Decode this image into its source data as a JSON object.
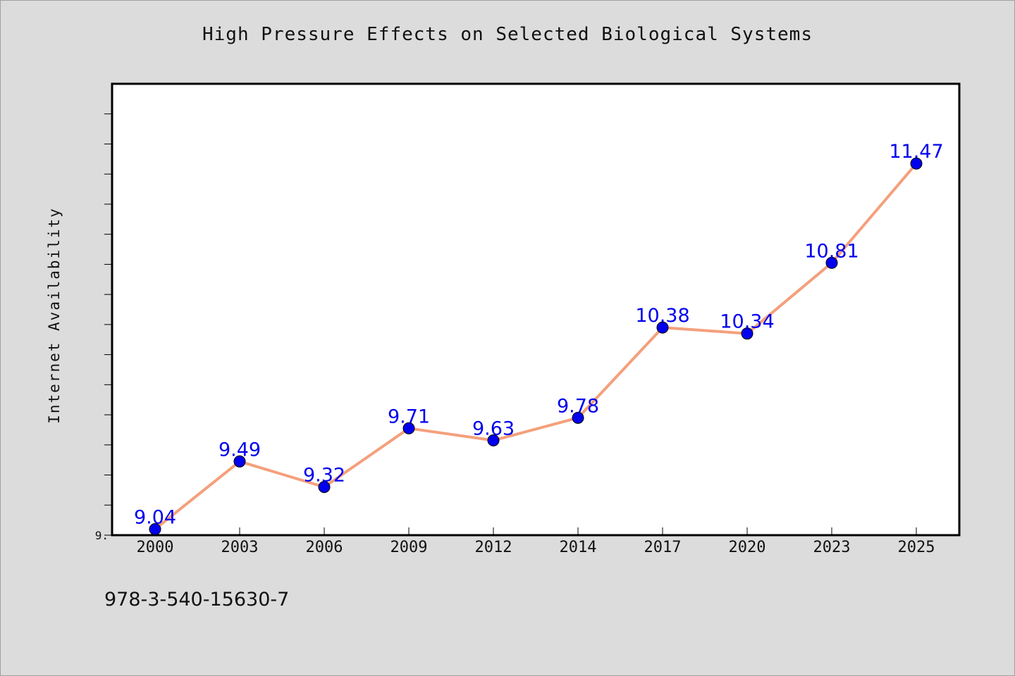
{
  "chart_data": {
    "type": "line",
    "title": "High Pressure Effects on Selected Biological Systems",
    "xlabel": "",
    "ylabel": "Internet Availability",
    "categories": [
      "2000",
      "2003",
      "2006",
      "2009",
      "2012",
      "2014",
      "2017",
      "2020",
      "2023",
      "2025"
    ],
    "series": [
      {
        "values": [
          9.04,
          9.49,
          9.32,
          9.71,
          9.63,
          9.78,
          10.38,
          10.34,
          10.81,
          11.47
        ],
        "color": "#f4a07c",
        "marker_color": "#0000ee"
      }
    ],
    "data_labels": [
      "9.04",
      "9.49",
      "9.32",
      "9.71",
      "9.63",
      "9.78",
      "10.38",
      "10.34",
      "10.81",
      "11.47"
    ],
    "ylim": [
      9.0,
      12.0
    ],
    "y_tick_labels": [
      "9."
    ],
    "grid": false,
    "legend": "none",
    "label_color": "#0000ee"
  },
  "footnote": "978-3-540-15630-7"
}
